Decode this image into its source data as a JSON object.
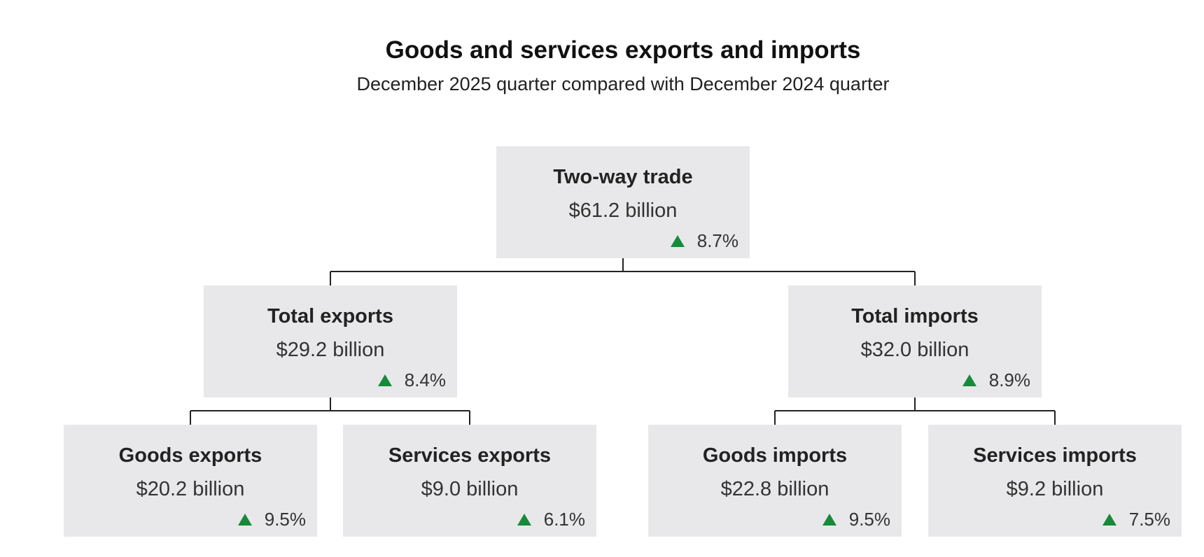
{
  "title": "Goods and services exports and imports",
  "subtitle": "December 2025 quarter compared with December 2024 quarter",
  "colors": {
    "box_background": "#e8e8ea",
    "increase_arrow": "#178a3a",
    "connector": "#222222"
  },
  "nodes": {
    "two_way": {
      "title": "Two-way trade",
      "value": "$61.2 billion",
      "change": "8.7%",
      "direction": "up"
    },
    "total_exports": {
      "title": "Total exports",
      "value": "$29.2 billion",
      "change": "8.4%",
      "direction": "up"
    },
    "total_imports": {
      "title": "Total imports",
      "value": "$32.0 billion",
      "change": "8.9%",
      "direction": "up"
    },
    "goods_exports": {
      "title": "Goods exports",
      "value": "$20.2 billion",
      "change": "9.5%",
      "direction": "up"
    },
    "services_exports": {
      "title": "Services exports",
      "value": "$9.0 billion",
      "change": "6.1%",
      "direction": "up"
    },
    "goods_imports": {
      "title": "Goods imports",
      "value": "$22.8 billion",
      "change": "9.5%",
      "direction": "up"
    },
    "services_imports": {
      "title": "Services imports",
      "value": "$9.2 billion",
      "change": "7.5%",
      "direction": "up"
    }
  }
}
